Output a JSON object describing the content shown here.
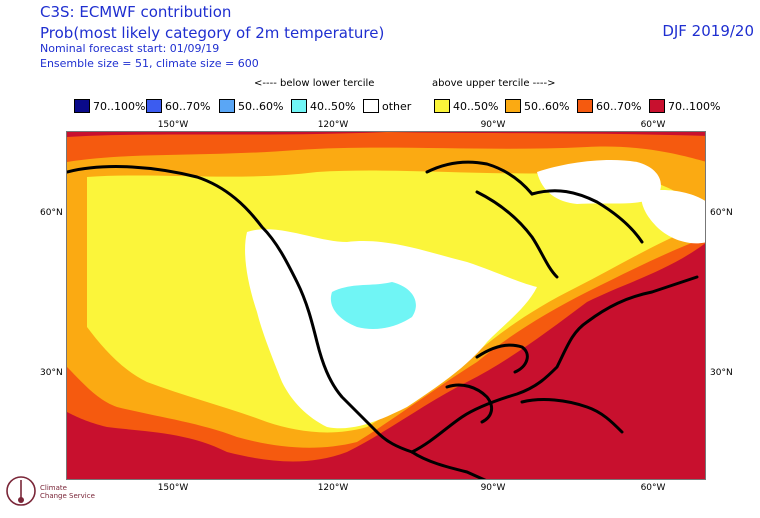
{
  "header": {
    "line1": "C3S: ECMWF contribution",
    "line2": "Prob(most likely category of 2m temperature)",
    "line3": "Nominal forecast start: 01/09/19",
    "line4": "Ensemble size = 51, climate size = 600",
    "season": "DJF 2019/20"
  },
  "legend": {
    "below_note": "<---- below lower tercile",
    "above_note": "above upper tercile ---->",
    "items": [
      {
        "label": "70..100%",
        "color": "#0a0a8a"
      },
      {
        "label": "60..70%",
        "color": "#3c5cf0"
      },
      {
        "label": "50..60%",
        "color": "#5aa6f5"
      },
      {
        "label": "40..50%",
        "color": "#70f5f5"
      },
      {
        "label": "other",
        "color": "#ffffff"
      },
      {
        "label": "40..50%",
        "color": "#fbf53a"
      },
      {
        "label": "50..60%",
        "color": "#fbaa12"
      },
      {
        "label": "60..70%",
        "color": "#f55a0f"
      },
      {
        "label": "70..100%",
        "color": "#c8102e"
      }
    ]
  },
  "axes": {
    "lon_top": [
      "150°W",
      "120°W",
      "90°W",
      "60°W"
    ],
    "lon_bottom": [
      "150°W",
      "120°W",
      "90°W",
      "60°W"
    ],
    "lat_left": [
      "60°N",
      "30°N"
    ],
    "lat_right": [
      "60°N",
      "30°N"
    ]
  },
  "logo": {
    "line1": "Climate",
    "line2": "Change Service"
  }
}
